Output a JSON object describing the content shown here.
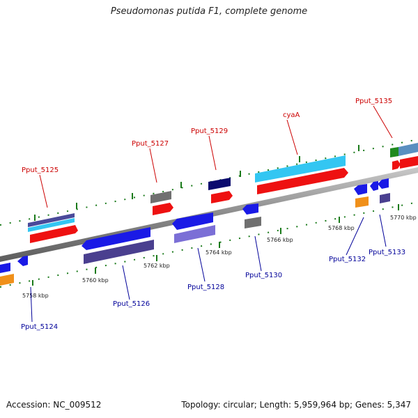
{
  "title": "Pseudomonas putida F1, complete genome",
  "footer": {
    "accession": "Accession: NC_009512",
    "summary": "Topology: circular; Length: 5,959,964 bp; Genes: 5,347"
  },
  "colors": {
    "forward_label": "#cc0000",
    "reverse_label": "#000099",
    "backbone": "#8a8a8a",
    "tick": "#1a7a1a"
  },
  "ticks": [
    "5758 kbp",
    "5760 kbp",
    "5762 kbp",
    "5764 kbp",
    "5766 kbp",
    "5768 kbp",
    "5770 kbp"
  ],
  "forward_labels": [
    "Pput_5125",
    "Pput_5127",
    "Pput_5129",
    "cyaA",
    "Pput_5135"
  ],
  "reverse_labels": [
    "Pput_5124",
    "Pput_5126",
    "Pput_5128",
    "Pput_5130",
    "Pput_5132",
    "Pput_5133"
  ]
}
